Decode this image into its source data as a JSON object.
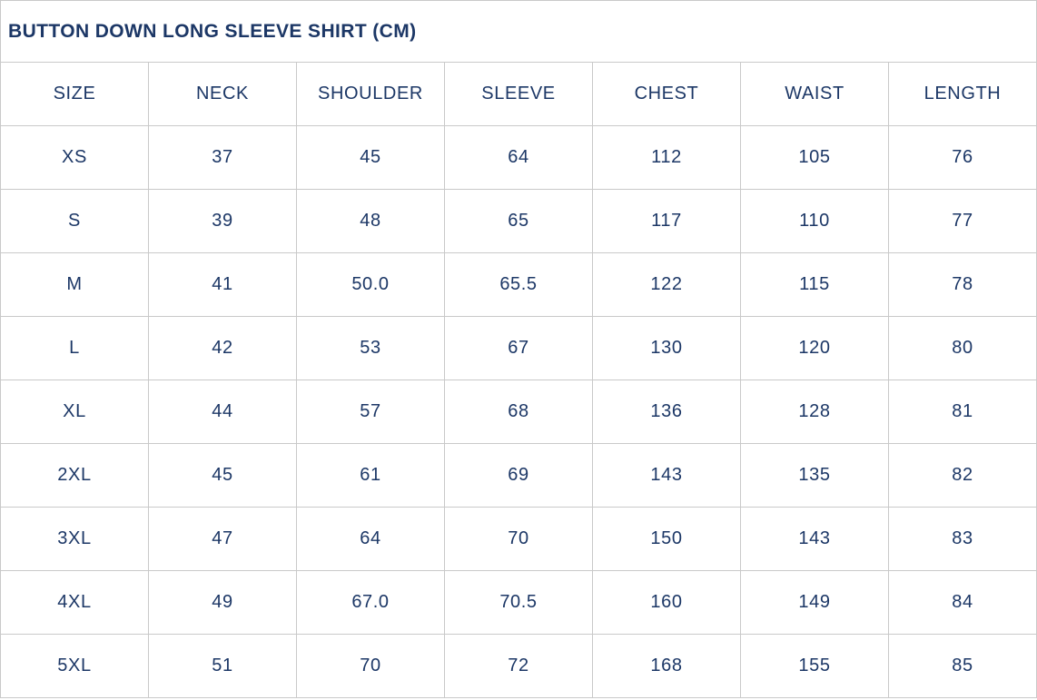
{
  "chart_data": {
    "type": "table",
    "title": "BUTTON DOWN LONG SLEEVE SHIRT (CM)",
    "unit": "CM",
    "columns": [
      "SIZE",
      "NECK",
      "SHOULDER",
      "SLEEVE",
      "CHEST",
      "WAIST",
      "LENGTH"
    ],
    "rows": [
      [
        "XS",
        "37",
        "45",
        "64",
        "112",
        "105",
        "76"
      ],
      [
        "S",
        "39",
        "48",
        "65",
        "117",
        "110",
        "77"
      ],
      [
        "M",
        "41",
        "50.0",
        "65.5",
        "122",
        "115",
        "78"
      ],
      [
        "L",
        "42",
        "53",
        "67",
        "130",
        "120",
        "80"
      ],
      [
        "XL",
        "44",
        "57",
        "68",
        "136",
        "128",
        "81"
      ],
      [
        "2XL",
        "45",
        "61",
        "69",
        "143",
        "135",
        "82"
      ],
      [
        "3XL",
        "47",
        "64",
        "70",
        "150",
        "143",
        "83"
      ],
      [
        "4XL",
        "49",
        "67.0",
        "70.5",
        "160",
        "149",
        "84"
      ],
      [
        "5XL",
        "51",
        "70",
        "72",
        "168",
        "155",
        "85"
      ]
    ],
    "colors": {
      "text_navy": "#1c3766",
      "grid": "#c9c9c9",
      "background": "#ffffff"
    }
  }
}
